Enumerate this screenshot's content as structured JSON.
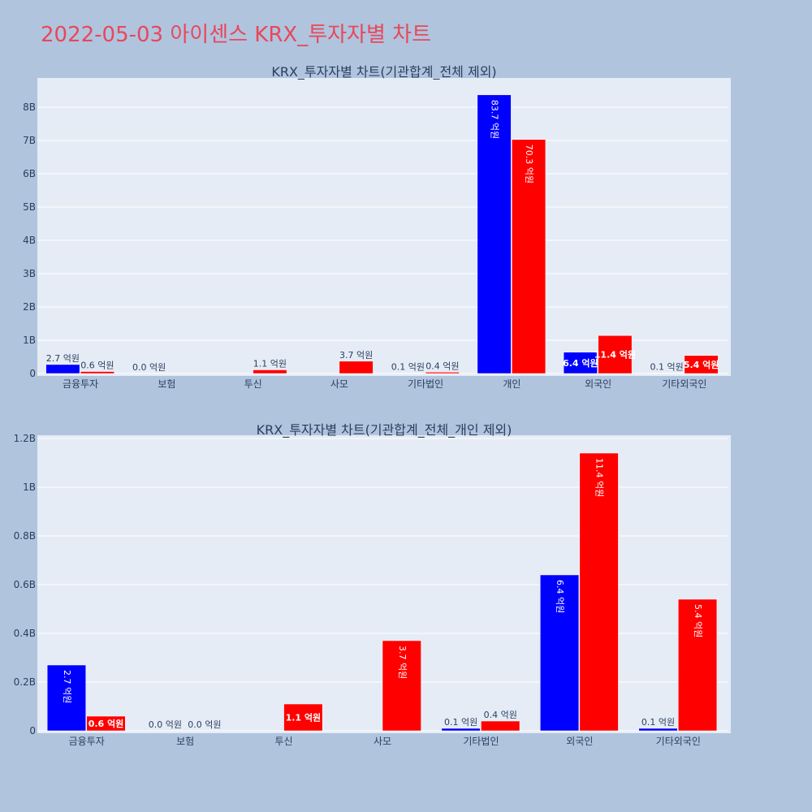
{
  "page": {
    "title": "2022-05-03 아이센스 KRX_투자자별 차트"
  },
  "colors": {
    "background": "#b0c4de",
    "plot_bg": "#e5ecf6",
    "grid": "#ffffff",
    "buy": "#0000ff",
    "sell": "#ff0000",
    "title": "#e8485a",
    "text": "#2a3f5f"
  },
  "chart_data": [
    {
      "type": "bar",
      "title": "KRX_투자자별 차트(기관합계_전체 제외)",
      "categories": [
        "금융투자",
        "보험",
        "투신",
        "사모",
        "기타법인",
        "개인",
        "외국인",
        "기타외국인"
      ],
      "series": [
        {
          "color": "#0000ff",
          "values": [
            270000000,
            0,
            0,
            0,
            10000000,
            8370000000,
            640000000,
            10000000
          ],
          "labels": [
            "2.7 억원",
            "0.0 억원",
            "",
            "",
            "0.1 억원",
            "83.7 억원",
            "6.4 억원",
            "0.1 억원"
          ]
        },
        {
          "color": "#ff0000",
          "values": [
            60000000,
            0,
            110000000,
            370000000,
            40000000,
            7030000000,
            1140000000,
            540000000
          ],
          "labels": [
            "0.6 억원",
            "",
            "1.1 억원",
            "3.7 억원",
            "0.4 억원",
            "70.3 억원",
            "11.4 억원",
            "5.4 억원"
          ]
        }
      ],
      "ylim": [
        0,
        8900000000
      ],
      "yticks": [
        0,
        1000000000,
        2000000000,
        3000000000,
        4000000000,
        5000000000,
        6000000000,
        7000000000,
        8000000000
      ],
      "ytick_labels": [
        "0",
        "1B",
        "2B",
        "3B",
        "4B",
        "5B",
        "6B",
        "7B",
        "8B"
      ],
      "grid": true,
      "legend": "none"
    },
    {
      "type": "bar",
      "title": "KRX_투자자별 차트(기관합계_전체_개인 제외)",
      "categories": [
        "금융투자",
        "보험",
        "투신",
        "사모",
        "기타법인",
        "외국인",
        "기타외국인"
      ],
      "series": [
        {
          "color": "#0000ff",
          "values": [
            270000000,
            0,
            0,
            0,
            10000000,
            640000000,
            10000000
          ],
          "labels": [
            "2.7 억원",
            "0.0 억원",
            "",
            "",
            "0.1 억원",
            "6.4 억원",
            "0.1 억원"
          ]
        },
        {
          "color": "#ff0000",
          "values": [
            60000000,
            0,
            110000000,
            370000000,
            40000000,
            1140000000,
            540000000
          ],
          "labels": [
            "0.6 억원",
            "0.0 억원",
            "1.1 억원",
            "3.7 억원",
            "0.4 억원",
            "11.4 억원",
            "5.4 억원"
          ]
        }
      ],
      "ylim": [
        0,
        1200000000
      ],
      "yticks": [
        0,
        200000000,
        400000000,
        600000000,
        800000000,
        1000000000,
        1200000000
      ],
      "ytick_labels": [
        "0",
        "0.2B",
        "0.4B",
        "0.6B",
        "0.8B",
        "1B",
        "1.2B"
      ],
      "grid": true,
      "legend": "none"
    }
  ]
}
